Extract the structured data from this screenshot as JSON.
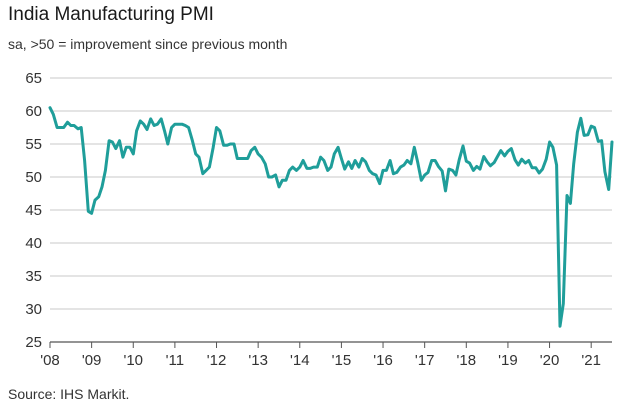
{
  "chart_data": {
    "type": "line",
    "title": "India Manufacturing PMI",
    "subtitle": "sa, >50 = improvement since previous month",
    "source": "Source: IHS Markit.",
    "ylim": [
      25,
      65
    ],
    "yticks": [
      25,
      30,
      35,
      40,
      45,
      50,
      55,
      60,
      65
    ],
    "xlim": [
      2008.0,
      2021.5
    ],
    "xticks": [
      {
        "value": 2008,
        "label": "'08"
      },
      {
        "value": 2009,
        "label": "'09"
      },
      {
        "value": 2010,
        "label": "'10"
      },
      {
        "value": 2011,
        "label": "'11"
      },
      {
        "value": 2012,
        "label": "'12"
      },
      {
        "value": 2013,
        "label": "'13"
      },
      {
        "value": 2014,
        "label": "'14"
      },
      {
        "value": 2015,
        "label": "'15"
      },
      {
        "value": 2016,
        "label": "'16"
      },
      {
        "value": 2017,
        "label": "'17"
      },
      {
        "value": 2018,
        "label": "'18"
      },
      {
        "value": 2019,
        "label": "'19"
      },
      {
        "value": 2020,
        "label": "'20"
      },
      {
        "value": 2021,
        "label": "'21"
      }
    ],
    "line_color": "#1f9e9a",
    "series": [
      {
        "name": "India Manufacturing PMI",
        "x": [
          2008.0,
          2008.08,
          2008.17,
          2008.25,
          2008.33,
          2008.42,
          2008.5,
          2008.58,
          2008.67,
          2008.75,
          2008.83,
          2008.92,
          2009.0,
          2009.08,
          2009.17,
          2009.25,
          2009.33,
          2009.42,
          2009.5,
          2009.58,
          2009.67,
          2009.75,
          2009.83,
          2009.92,
          2010.0,
          2010.08,
          2010.17,
          2010.25,
          2010.33,
          2010.42,
          2010.5,
          2010.58,
          2010.67,
          2010.75,
          2010.83,
          2010.92,
          2011.0,
          2011.08,
          2011.17,
          2011.25,
          2011.33,
          2011.42,
          2011.5,
          2011.58,
          2011.67,
          2011.75,
          2011.83,
          2011.92,
          2012.0,
          2012.08,
          2012.17,
          2012.25,
          2012.33,
          2012.42,
          2012.5,
          2012.58,
          2012.67,
          2012.75,
          2012.83,
          2012.92,
          2013.0,
          2013.08,
          2013.17,
          2013.25,
          2013.33,
          2013.42,
          2013.5,
          2013.58,
          2013.67,
          2013.75,
          2013.83,
          2013.92,
          2014.0,
          2014.08,
          2014.17,
          2014.25,
          2014.33,
          2014.42,
          2014.5,
          2014.58,
          2014.67,
          2014.75,
          2014.83,
          2014.92,
          2015.0,
          2015.08,
          2015.17,
          2015.25,
          2015.33,
          2015.42,
          2015.5,
          2015.58,
          2015.67,
          2015.75,
          2015.83,
          2015.92,
          2016.0,
          2016.08,
          2016.17,
          2016.25,
          2016.33,
          2016.42,
          2016.5,
          2016.58,
          2016.67,
          2016.75,
          2016.83,
          2016.92,
          2017.0,
          2017.08,
          2017.17,
          2017.25,
          2017.33,
          2017.42,
          2017.5,
          2017.58,
          2017.67,
          2017.75,
          2017.83,
          2017.92,
          2018.0,
          2018.08,
          2018.17,
          2018.25,
          2018.33,
          2018.42,
          2018.5,
          2018.58,
          2018.67,
          2018.75,
          2018.83,
          2018.92,
          2019.0,
          2019.08,
          2019.17,
          2019.25,
          2019.33,
          2019.42,
          2019.5,
          2019.58,
          2019.67,
          2019.75,
          2019.83,
          2019.92,
          2020.0,
          2020.08,
          2020.17,
          2020.25,
          2020.33,
          2020.42,
          2020.5,
          2020.58,
          2020.67,
          2020.75,
          2020.83,
          2020.92,
          2021.0,
          2021.08,
          2021.17,
          2021.25,
          2021.33,
          2021.42,
          2021.5
        ],
        "values": [
          60.5,
          59.5,
          57.5,
          57.5,
          57.5,
          58.3,
          57.8,
          57.8,
          57.3,
          57.5,
          52.5,
          44.8,
          44.5,
          46.5,
          47.0,
          48.5,
          51.0,
          55.5,
          55.3,
          54.3,
          55.5,
          53.0,
          54.5,
          54.5,
          53.5,
          57.0,
          58.5,
          58.0,
          57.2,
          58.8,
          57.8,
          58.0,
          58.8,
          57.0,
          55.0,
          57.5,
          58.0,
          58.0,
          58.0,
          57.8,
          57.5,
          55.5,
          53.5,
          53.0,
          50.5,
          51.0,
          51.5,
          54.5,
          57.5,
          57.0,
          54.8,
          54.8,
          55.0,
          55.0,
          52.8,
          52.8,
          52.8,
          52.8,
          54.0,
          54.5,
          53.5,
          53.0,
          52.0,
          50.0,
          50.0,
          50.3,
          48.5,
          49.5,
          49.5,
          51.0,
          51.5,
          51.0,
          51.5,
          52.5,
          51.3,
          51.3,
          51.5,
          51.5,
          53.0,
          52.5,
          51.0,
          51.5,
          53.5,
          54.5,
          52.8,
          51.2,
          52.3,
          51.3,
          52.5,
          51.5,
          52.8,
          52.3,
          51.0,
          50.5,
          50.3,
          49.0,
          51.0,
          51.0,
          52.5,
          50.5,
          50.7,
          51.5,
          51.8,
          52.5,
          52.0,
          54.5,
          52.3,
          49.5,
          50.3,
          50.7,
          52.5,
          52.5,
          51.6,
          50.9,
          47.9,
          51.2,
          51.0,
          50.3,
          52.6,
          54.7,
          52.4,
          52.1,
          51.0,
          51.6,
          51.2,
          53.1,
          52.3,
          51.7,
          52.2,
          53.1,
          54.0,
          53.2,
          53.9,
          54.3,
          52.6,
          51.8,
          52.7,
          52.1,
          52.5,
          51.4,
          51.4,
          50.6,
          51.2,
          52.7,
          55.3,
          54.5,
          51.8,
          27.4,
          30.8,
          47.2,
          46.0,
          52.0,
          56.8,
          58.9,
          56.3,
          56.4,
          57.7,
          57.5,
          55.4,
          55.5,
          50.8,
          48.1,
          55.3
        ]
      }
    ]
  }
}
